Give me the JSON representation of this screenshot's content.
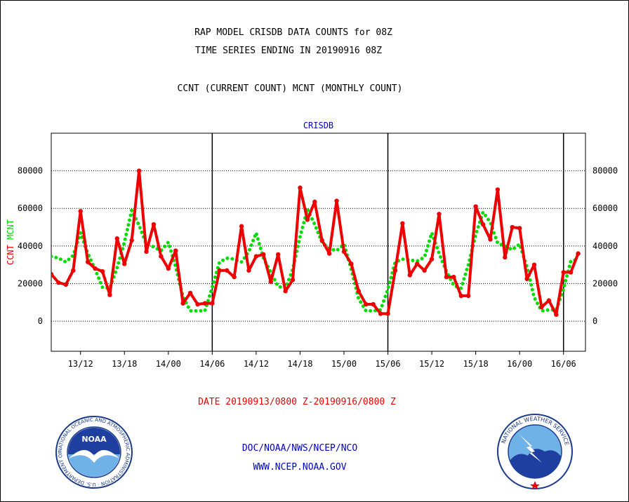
{
  "header": {
    "line1": "RAP MODEL CRISDB DATA COUNTS for 08Z",
    "line2": "TIME SERIES ENDING IN 20190916 08Z",
    "line3": "CCNT (CURRENT COUNT) MCNT (MONTHLY COUNT)"
  },
  "footer": {
    "date_range": "DATE 20190913/0800 Z-20190916/0800 Z",
    "agency": "DOC/NOAA/NWS/NCEP/NCO",
    "website": "WWW.NCEP.NOAA.GOV"
  },
  "logos": {
    "noaa_label": "NOAA",
    "noaa_ring_text": "NATIONAL OCEANIC AND ATMOSPHERIC ADMINISTRATION · U.S. DEPARTMENT OF COMMERCE ·",
    "nws_ring_text": "NATIONAL WEATHER SERVICE"
  },
  "colors": {
    "ccnt": "#ee0000",
    "mcnt": "#00dd00",
    "panel_title": "#0000cc",
    "date_text": "#ee0000",
    "footer_text": "#0000cc"
  },
  "chart_data": {
    "type": "line",
    "title": "CRISDB",
    "ylabel_parts": [
      {
        "text": "CCNT",
        "color": "#ee0000"
      },
      {
        "text": "MCNT",
        "color": "#00dd00"
      }
    ],
    "xlim": [
      0,
      73
    ],
    "ylim": [
      -16000,
      100000
    ],
    "yticks": [
      0,
      20000,
      40000,
      60000,
      80000
    ],
    "ytick_labels": [
      "0",
      "20000",
      "40000",
      "60000",
      "80000"
    ],
    "xticks": [
      4,
      10,
      16,
      22,
      28,
      34,
      40,
      46,
      52,
      58,
      64,
      70
    ],
    "xtick_labels": [
      "13/12",
      "13/18",
      "14/00",
      "14/06",
      "14/12",
      "14/18",
      "15/00",
      "15/06",
      "15/12",
      "15/18",
      "16/00",
      "16/06"
    ],
    "day_dividers": [
      22,
      46,
      70
    ],
    "grid": "horizontal-dotted",
    "series": [
      {
        "name": "CCNT",
        "color": "#ee0000",
        "style": "solid",
        "values": [
          25000,
          20500,
          19500,
          27000,
          58500,
          31500,
          28000,
          26500,
          14000,
          44000,
          30500,
          43000,
          80000,
          37000,
          51500,
          34500,
          28000,
          37500,
          9500,
          15000,
          9000,
          9500,
          9500,
          27000,
          27000,
          23500,
          50500,
          27000,
          34500,
          35500,
          21000,
          35500,
          16000,
          22000,
          71000,
          54000,
          63500,
          43000,
          36000,
          64000,
          37000,
          30500,
          16000,
          9000,
          9000,
          4000,
          4000,
          27000,
          52000,
          24500,
          30500,
          27000,
          33000,
          57000,
          23500,
          23500,
          13500,
          13500,
          61000,
          51500,
          43500,
          70000,
          34000,
          50000,
          49500,
          22500,
          30000,
          7500,
          11000,
          3500,
          26000,
          26000,
          36000
        ]
      },
      {
        "name": "MCNT",
        "color": "#00dd00",
        "style": "dotted",
        "values": [
          34500,
          33500,
          31500,
          35000,
          47000,
          36000,
          27500,
          18000,
          17500,
          28500,
          42000,
          59000,
          51000,
          41000,
          39500,
          37500,
          42000,
          29000,
          13000,
          5500,
          5500,
          5500,
          18000,
          31500,
          33500,
          33000,
          31500,
          37000,
          47000,
          33500,
          26000,
          18500,
          17500,
          27500,
          45000,
          59500,
          51500,
          42000,
          38500,
          37500,
          41000,
          27500,
          12000,
          5500,
          5500,
          6000,
          17000,
          31500,
          33000,
          32500,
          32000,
          34000,
          47000,
          36000,
          26500,
          19000,
          17500,
          30000,
          46000,
          58000,
          52500,
          41500,
          40000,
          38000,
          41000,
          29000,
          12500,
          5500,
          6000,
          6000,
          17000,
          32000,
          33000
        ]
      }
    ]
  }
}
